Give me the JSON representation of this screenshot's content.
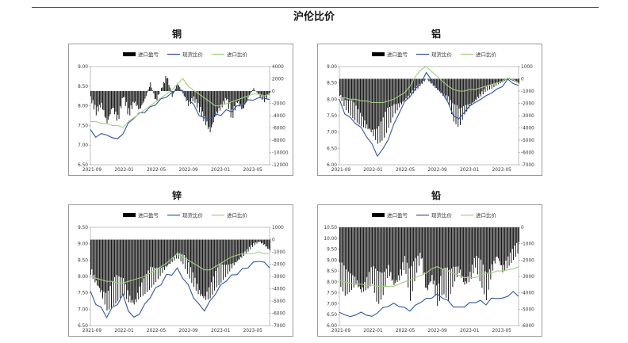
{
  "page": {
    "title": "沪伦比价"
  },
  "chart_data": [
    {
      "type": "line",
      "title": "铜",
      "legend": [
        "进口盈亏",
        "现货比价",
        "进口比价"
      ],
      "legend_placement": "top",
      "xticks": [
        "2021-09",
        "2022-01",
        "2022-05",
        "2022-09",
        "2023-01",
        "2023-05"
      ],
      "left_ylim": [
        6.5,
        9.0
      ],
      "left_yticks": [
        "6.50",
        "7.00",
        "7.50",
        "8.00",
        "8.50",
        "9.00"
      ],
      "right_ylim": [
        -12000,
        4000
      ],
      "right_yticks": [
        "-12000",
        "-10000",
        "-8000",
        "-6000",
        "-4000",
        "-2000",
        "0",
        "2000",
        "4000"
      ],
      "colors": {
        "profit": "#000000",
        "spot": "#2f55a4",
        "import": "#9fd27e"
      },
      "series": [
        {
          "name": "进口盈亏",
          "axis": "right",
          "kind": "area",
          "x": [
            0,
            3,
            6,
            9,
            12,
            15,
            18,
            21,
            24,
            27,
            30,
            33,
            36,
            39,
            42,
            45,
            48,
            51,
            54,
            57,
            60,
            63,
            66,
            69,
            72,
            75,
            78,
            81,
            84,
            87,
            90,
            93,
            96,
            99
          ],
          "values": [
            -1500,
            -4000,
            -2500,
            -6000,
            -3000,
            -5500,
            -1000,
            -4500,
            -2000,
            -3500,
            -1500,
            1500,
            -2000,
            500,
            3000,
            -1000,
            1500,
            -500,
            -2500,
            -1500,
            -3500,
            -5500,
            -7500,
            -4500,
            -3000,
            -1500,
            -5000,
            -2000,
            -3500,
            -1200,
            500,
            -800,
            -1800,
            -400
          ]
        },
        {
          "name": "现货比价",
          "axis": "left",
          "kind": "line",
          "x": [
            0,
            3,
            6,
            9,
            12,
            15,
            18,
            21,
            24,
            27,
            30,
            33,
            36,
            39,
            42,
            45,
            48,
            51,
            54,
            57,
            60,
            63,
            66,
            69,
            72,
            75,
            78,
            81,
            84,
            87,
            90,
            93,
            96,
            99
          ],
          "values": [
            7.4,
            7.2,
            7.3,
            7.25,
            7.2,
            7.15,
            7.3,
            7.55,
            7.7,
            7.8,
            7.85,
            7.95,
            8.05,
            8.15,
            8.25,
            8.3,
            8.45,
            8.35,
            8.2,
            8.0,
            7.8,
            7.65,
            7.7,
            7.75,
            7.8,
            7.85,
            7.9,
            7.95,
            8.05,
            8.1,
            8.2,
            8.15,
            8.25,
            8.1
          ]
        },
        {
          "name": "进口比价",
          "axis": "left",
          "kind": "line",
          "x": [
            0,
            3,
            6,
            9,
            12,
            15,
            18,
            21,
            24,
            27,
            30,
            33,
            36,
            39,
            42,
            45,
            48,
            51,
            54,
            57,
            60,
            63,
            66,
            69,
            72,
            75,
            78,
            81,
            84,
            87,
            90,
            93,
            96,
            99
          ],
          "values": [
            7.6,
            7.6,
            7.55,
            7.55,
            7.5,
            7.5,
            7.45,
            7.6,
            7.7,
            7.8,
            7.9,
            8.0,
            8.1,
            8.2,
            8.3,
            8.4,
            8.55,
            8.7,
            8.5,
            8.4,
            8.3,
            8.2,
            8.1,
            8.0,
            8.0,
            8.05,
            8.1,
            8.15,
            8.2,
            8.25,
            8.3,
            8.3,
            8.25,
            8.3
          ]
        }
      ]
    },
    {
      "type": "line",
      "title": "铝",
      "legend": [
        "进口盈亏",
        "现货比价",
        "进口比价"
      ],
      "legend_placement": "top",
      "xticks": [
        "2021-09",
        "2022-01",
        "2022-05",
        "2022-09",
        "2023-01",
        "2023-05"
      ],
      "left_ylim": [
        6.0,
        9.0
      ],
      "left_yticks": [
        "6.00",
        "6.50",
        "7.00",
        "7.50",
        "8.00",
        "8.50",
        "9.00"
      ],
      "right_ylim": [
        -7000,
        1000
      ],
      "right_yticks": [
        "-7000",
        "-6000",
        "-5000",
        "-4000",
        "-3000",
        "-2000",
        "-1000",
        "0",
        "1000"
      ],
      "colors": {
        "profit": "#000000",
        "spot": "#2f55a4",
        "import": "#9fd27e"
      },
      "series": [
        {
          "name": "进口盈亏",
          "axis": "right",
          "kind": "area",
          "x": [
            0,
            3,
            6,
            9,
            12,
            15,
            18,
            21,
            24,
            27,
            30,
            33,
            36,
            39,
            42,
            45,
            48,
            51,
            54,
            57,
            60,
            63,
            66,
            69,
            72,
            75,
            78,
            81,
            84,
            87,
            90,
            93,
            96,
            99
          ],
          "values": [
            -1500,
            -2500,
            -3000,
            -3500,
            -4000,
            -4500,
            -5000,
            -5500,
            -5000,
            -4000,
            -3000,
            -2500,
            -2000,
            -1500,
            -1000,
            -500,
            0,
            -500,
            -1000,
            -1500,
            -2000,
            -3500,
            -4000,
            -3000,
            -2500,
            -2000,
            -1500,
            -1000,
            -800,
            -500,
            -300,
            0,
            -200,
            -400
          ]
        },
        {
          "name": "现货比价",
          "axis": "left",
          "kind": "line",
          "x": [
            0,
            3,
            6,
            9,
            12,
            15,
            18,
            21,
            24,
            27,
            30,
            33,
            36,
            39,
            42,
            45,
            48,
            51,
            54,
            57,
            60,
            63,
            66,
            69,
            72,
            75,
            78,
            81,
            84,
            87,
            90,
            93,
            96,
            99
          ],
          "values": [
            7.95,
            7.6,
            7.4,
            7.3,
            7.1,
            6.9,
            6.6,
            6.3,
            6.45,
            6.8,
            7.2,
            7.6,
            7.9,
            8.1,
            8.3,
            8.5,
            8.8,
            8.6,
            8.4,
            8.2,
            7.9,
            7.5,
            7.4,
            7.6,
            7.8,
            7.9,
            8.0,
            8.1,
            8.2,
            8.3,
            8.4,
            8.6,
            8.5,
            8.4
          ]
        },
        {
          "name": "进口比价",
          "axis": "left",
          "kind": "line",
          "x": [
            0,
            3,
            6,
            9,
            12,
            15,
            18,
            21,
            24,
            27,
            30,
            33,
            36,
            39,
            42,
            45,
            48,
            51,
            54,
            57,
            60,
            63,
            66,
            69,
            72,
            75,
            78,
            81,
            84,
            87,
            90,
            93,
            96,
            99
          ],
          "values": [
            8.05,
            8.05,
            8.0,
            8.0,
            7.95,
            7.95,
            7.9,
            7.9,
            7.9,
            7.95,
            8.0,
            8.1,
            8.2,
            8.4,
            8.7,
            8.9,
            9.0,
            8.85,
            8.7,
            8.55,
            8.4,
            8.3,
            8.25,
            8.25,
            8.3,
            8.3,
            8.35,
            8.4,
            8.45,
            8.5,
            8.55,
            8.65,
            8.6,
            8.5
          ]
        }
      ]
    },
    {
      "type": "line",
      "title": "锌",
      "legend": [
        "进口盈亏",
        "现货比价",
        "进口比价"
      ],
      "legend_placement": "top",
      "xticks": [
        "2021-09",
        "2022-01",
        "2022-05",
        "2022-09",
        "2023-01",
        "2023-05"
      ],
      "left_ylim": [
        6.5,
        9.5
      ],
      "left_yticks": [
        "6.50",
        "7.00",
        "7.50",
        "8.00",
        "8.50",
        "9.00",
        "9.50"
      ],
      "right_ylim": [
        -7000,
        1000
      ],
      "right_yticks": [
        "-7000",
        "-6000",
        "-5000",
        "-4000",
        "-3000",
        "-2000",
        "-1000",
        "0",
        "1000"
      ],
      "colors": {
        "profit": "#000000",
        "spot": "#2f55a4",
        "import": "#9fd27e"
      },
      "series": [
        {
          "name": "进口盈亏",
          "axis": "right",
          "kind": "area",
          "x": [
            0,
            3,
            6,
            9,
            12,
            15,
            18,
            21,
            24,
            27,
            30,
            33,
            36,
            39,
            42,
            45,
            48,
            51,
            54,
            57,
            60,
            63,
            66,
            69,
            72,
            75,
            78,
            81,
            84,
            87,
            90,
            93,
            96,
            99
          ],
          "values": [
            -3000,
            -4000,
            -5000,
            -6000,
            -5500,
            -5000,
            -4500,
            -5500,
            -6000,
            -5000,
            -4500,
            -4000,
            -3500,
            -3000,
            -2500,
            -2000,
            -1500,
            -2000,
            -3000,
            -4000,
            -5000,
            -5500,
            -5000,
            -4000,
            -3500,
            -3000,
            -2500,
            -2000,
            -1500,
            -1000,
            -500,
            -200,
            -500,
            -1000
          ]
        },
        {
          "name": "现货比价",
          "axis": "left",
          "kind": "line",
          "x": [
            0,
            3,
            6,
            9,
            12,
            15,
            18,
            21,
            24,
            27,
            30,
            33,
            36,
            39,
            42,
            45,
            48,
            51,
            54,
            57,
            60,
            63,
            66,
            69,
            72,
            75,
            78,
            81,
            84,
            87,
            90,
            93,
            96,
            99
          ],
          "values": [
            7.5,
            7.2,
            7.0,
            6.8,
            7.0,
            7.2,
            7.4,
            7.0,
            6.7,
            6.9,
            7.1,
            7.4,
            7.6,
            7.8,
            8.0,
            8.1,
            8.2,
            8.0,
            7.7,
            7.4,
            7.1,
            7.0,
            7.2,
            7.5,
            7.7,
            7.9,
            8.0,
            8.1,
            8.2,
            8.3,
            8.4,
            8.5,
            8.4,
            8.3
          ]
        },
        {
          "name": "进口比价",
          "axis": "left",
          "kind": "line",
          "x": [
            0,
            3,
            6,
            9,
            12,
            15,
            18,
            21,
            24,
            27,
            30,
            33,
            36,
            39,
            42,
            45,
            48,
            51,
            54,
            57,
            60,
            63,
            66,
            69,
            72,
            75,
            78,
            81,
            84,
            87,
            90,
            93,
            96,
            99
          ],
          "values": [
            8.0,
            7.95,
            7.9,
            7.85,
            7.85,
            7.8,
            7.8,
            7.85,
            7.9,
            7.95,
            8.0,
            8.1,
            8.2,
            8.3,
            8.4,
            8.55,
            8.7,
            8.6,
            8.5,
            8.4,
            8.3,
            8.2,
            8.2,
            8.3,
            8.4,
            8.5,
            8.6,
            8.65,
            8.7,
            8.7,
            8.7,
            8.75,
            8.7,
            8.7
          ]
        }
      ]
    },
    {
      "type": "line",
      "title": "铅",
      "legend": [
        "进口盈亏",
        "现货比价",
        "进口比价"
      ],
      "legend_placement": "top",
      "xticks": [
        "2021-09",
        "2022-01",
        "2022-05",
        "2022-09",
        "2023-01",
        "2023-05"
      ],
      "left_ylim": [
        6.0,
        10.5
      ],
      "left_yticks": [
        "6.00",
        "6.50",
        "7.00",
        "7.50",
        "8.00",
        "8.50",
        "9.00",
        "9.50",
        "10.00",
        "10.50"
      ],
      "right_ylim": [
        -6000,
        0
      ],
      "right_yticks": [
        "-6000",
        "-5000",
        "-4000",
        "-3000",
        "-2000",
        "-1000",
        "0"
      ],
      "colors": {
        "profit": "#000000",
        "spot": "#2f55a4",
        "import": "#9fd27e"
      },
      "series": [
        {
          "name": "进口盈亏",
          "axis": "right",
          "kind": "area",
          "x": [
            0,
            3,
            6,
            9,
            12,
            15,
            18,
            21,
            24,
            27,
            30,
            33,
            36,
            39,
            42,
            45,
            48,
            51,
            54,
            57,
            60,
            63,
            66,
            69,
            72,
            75,
            78,
            81,
            84,
            87,
            90,
            93,
            96,
            99
          ],
          "values": [
            -3500,
            -4200,
            -4000,
            -3800,
            -4500,
            -4000,
            -3500,
            -4800,
            -4200,
            -3000,
            -4000,
            -3500,
            -2500,
            -4500,
            -3000,
            -2000,
            -4500,
            -3500,
            -5000,
            -4000,
            -4500,
            -3500,
            -3000,
            -4000,
            -3500,
            -2500,
            -3500,
            -4500,
            -3000,
            -2000,
            -3000,
            -2500,
            -2000,
            -1500
          ]
        },
        {
          "name": "现货比价",
          "axis": "left",
          "kind": "line",
          "x": [
            0,
            3,
            6,
            9,
            12,
            15,
            18,
            21,
            24,
            27,
            30,
            33,
            36,
            39,
            42,
            45,
            48,
            51,
            54,
            57,
            60,
            63,
            66,
            69,
            72,
            75,
            78,
            81,
            84,
            87,
            90,
            93,
            96,
            99
          ],
          "values": [
            6.6,
            6.5,
            6.4,
            6.5,
            6.6,
            6.5,
            6.4,
            6.6,
            6.8,
            6.9,
            7.0,
            6.9,
            6.8,
            6.7,
            6.9,
            7.1,
            7.2,
            7.3,
            7.4,
            7.3,
            7.1,
            6.9,
            6.8,
            6.9,
            7.0,
            7.1,
            7.1,
            7.0,
            7.2,
            7.3,
            7.2,
            7.4,
            7.5,
            7.4
          ]
        },
        {
          "name": "进口比价",
          "axis": "left",
          "kind": "line",
          "x": [
            0,
            3,
            6,
            9,
            12,
            15,
            18,
            21,
            24,
            27,
            30,
            33,
            36,
            39,
            42,
            45,
            48,
            51,
            54,
            57,
            60,
            63,
            66,
            69,
            72,
            75,
            78,
            81,
            84,
            87,
            90,
            93,
            96,
            99
          ],
          "values": [
            8.1,
            8.0,
            7.95,
            7.9,
            7.9,
            7.85,
            7.85,
            7.8,
            7.8,
            7.8,
            7.8,
            7.9,
            8.0,
            8.1,
            8.2,
            8.3,
            8.4,
            8.6,
            8.7,
            8.6,
            8.5,
            8.4,
            8.3,
            8.2,
            8.2,
            8.2,
            8.3,
            8.4,
            8.4,
            8.5,
            8.5,
            8.55,
            8.6,
            8.7
          ]
        }
      ]
    }
  ]
}
